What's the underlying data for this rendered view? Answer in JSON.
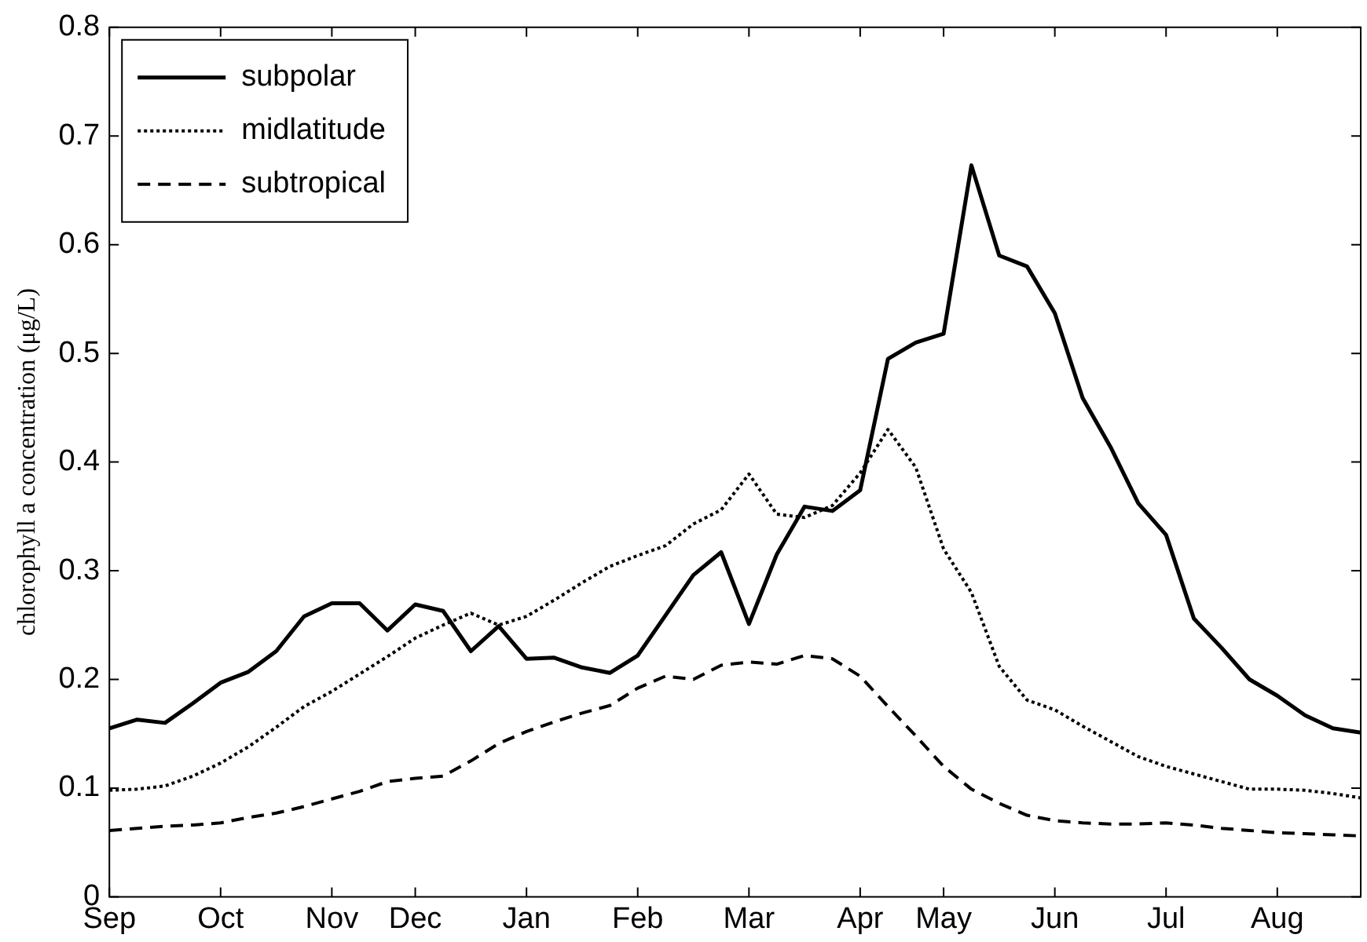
{
  "chart_data": {
    "type": "line",
    "ylabel": "chlorophyll a concentration (μg/L)",
    "categories": [
      "Sep",
      null,
      null,
      null,
      "Oct",
      null,
      null,
      null,
      "Nov",
      null,
      null,
      "Dec",
      null,
      null,
      null,
      "Jan",
      null,
      null,
      null,
      "Feb",
      null,
      null,
      null,
      "Mar",
      null,
      null,
      null,
      "Apr",
      null,
      null,
      "May",
      null,
      null,
      null,
      "Jun",
      null,
      null,
      null,
      "Jul",
      null,
      null,
      null,
      "Aug",
      null,
      null,
      null
    ],
    "ylim": [
      0,
      0.8
    ],
    "yticks": [
      0,
      0.1,
      0.2,
      0.3,
      0.4,
      0.5,
      0.6,
      0.7,
      0.8
    ],
    "grid": false,
    "legend": "top left",
    "marker": "none",
    "series": [
      {
        "name": "subpolar",
        "color": "#000000",
        "line_style": "solid",
        "values": [
          0.155,
          0.163,
          0.16,
          0.178,
          0.197,
          0.207,
          0.226,
          0.258,
          0.27,
          0.27,
          0.245,
          0.269,
          0.263,
          0.226,
          0.249,
          0.219,
          0.22,
          0.211,
          0.206,
          0.222,
          0.259,
          0.296,
          0.317,
          0.251,
          0.315,
          0.359,
          0.355,
          0.374,
          0.495,
          0.51,
          0.518,
          0.673,
          0.59,
          0.58,
          0.537,
          0.459,
          0.414,
          0.362,
          0.333,
          0.256,
          0.229,
          0.2,
          0.185,
          0.167,
          0.155,
          0.151
        ]
      },
      {
        "name": "midlatitude",
        "color": "#000000",
        "line_style": "dotted",
        "values": [
          0.098,
          0.099,
          0.102,
          0.111,
          0.123,
          0.138,
          0.156,
          0.175,
          0.189,
          0.205,
          0.221,
          0.238,
          0.25,
          0.261,
          0.25,
          0.258,
          0.273,
          0.289,
          0.304,
          0.314,
          0.323,
          0.343,
          0.356,
          0.389,
          0.352,
          0.349,
          0.36,
          0.39,
          0.43,
          0.395,
          0.32,
          0.28,
          0.212,
          0.181,
          0.172,
          0.157,
          0.143,
          0.129,
          0.12,
          0.113,
          0.106,
          0.099,
          0.099,
          0.098,
          0.095,
          0.091
        ]
      },
      {
        "name": "subtropical",
        "color": "#000000",
        "line_style": "dashed",
        "values": [
          0.061,
          0.063,
          0.065,
          0.066,
          0.068,
          0.073,
          0.077,
          0.083,
          0.09,
          0.097,
          0.106,
          0.109,
          0.111,
          0.125,
          0.141,
          0.152,
          0.161,
          0.169,
          0.176,
          0.192,
          0.203,
          0.2,
          0.213,
          0.216,
          0.214,
          0.222,
          0.219,
          0.203,
          0.175,
          0.148,
          0.12,
          0.099,
          0.086,
          0.075,
          0.07,
          0.068,
          0.067,
          0.067,
          0.068,
          0.066,
          0.063,
          0.061,
          0.059,
          0.058,
          0.057,
          0.056
        ]
      }
    ]
  }
}
